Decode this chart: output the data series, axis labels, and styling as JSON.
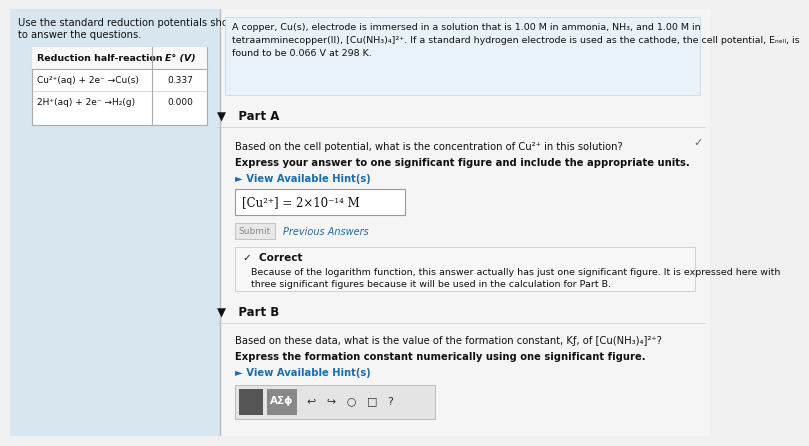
{
  "bg_left": "#dce8f0",
  "bg_right": "#f5f5f5",
  "left_panel_text_line1": "Use the standard reduction potentials shown here",
  "left_panel_text_line2": "to answer the questions.",
  "table_header_col1": "Reduction half-reaction",
  "table_header_col2": "E° (V)",
  "table_row1_col1": "Cu²⁺(aq) + 2e⁻ →Cu(s)",
  "table_row1_col2": "0.337",
  "table_row2_col1": "2H⁺(aq) + 2e⁻ →H₂(g)",
  "table_row2_col2": "0.000",
  "intro_text_line1": "A copper, Cu(s), electrode is immersed in a solution that is 1.00 M in ammonia, NH₃, and 1.00 M in",
  "intro_text_line2": "tetraamminecopper(II), [Cu(NH₃)₄]²⁺. If a standard hydrogen electrode is used as the cathode, the cell potential, Eₙₑₗₗ, is",
  "intro_text_line3": "found to be 0.066 V at 298 K.",
  "part_a_label": "▼   Part A",
  "checkmark": "✓",
  "part_a_q": "Based on the cell potential, what is the concentration of Cu²⁺ in this solution?",
  "part_a_instr": "Express your answer to one significant figure and include the appropriate units.",
  "hint_a": "► View Available Hint(s)",
  "answer_text": "[Cu²⁺] = 2×10⁻¹⁴ M",
  "submit_label": "Submit",
  "prev_answers_label": "Previous Answers",
  "correct_label": "✓  Correct",
  "correct_line1": "Because of the logarithm function, this answer actually has just one significant figure. It is expressed here with",
  "correct_line2": "three significant figures because it will be used in the calculation for Part B.",
  "part_b_label": "▼   Part B",
  "part_b_q_line1": "Based on these data, what is the value of the formation constant, Kƒ, of [Cu(NH₃)₄]²⁺?",
  "part_b_instr": "Express the formation constant numerically using one significant figure.",
  "hint_b": "► View Available Hint(s)",
  "toolbar_icons": "■√⬜  AΣϕ   ↩   ↪   □   ?"
}
